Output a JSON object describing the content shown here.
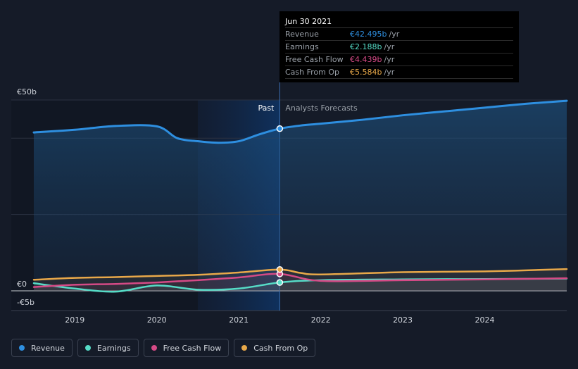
{
  "chart_data": {
    "type": "line",
    "currency_prefix": "€",
    "y_ticks": [
      {
        "v": 50,
        "label": "€50b"
      },
      {
        "v": 0,
        "label": "€0"
      },
      {
        "v": -5,
        "label": "-€5b"
      }
    ],
    "ylim": [
      -5,
      50
    ],
    "xlim": [
      2018.5,
      2025.0
    ],
    "x_ticks": [
      2019,
      2020,
      2021,
      2022,
      2023,
      2024
    ],
    "past_label": "Past",
    "forecast_label": "Analysts Forecasts",
    "divider_x": 2021.5,
    "highlight_start_x": 2020.5,
    "series": [
      {
        "name": "Revenue",
        "color": "#2e8fe0",
        "fill": true,
        "points": [
          [
            2018.5,
            41.5
          ],
          [
            2019.0,
            42.2
          ],
          [
            2019.5,
            43.2
          ],
          [
            2020.0,
            43.1
          ],
          [
            2020.25,
            40.0
          ],
          [
            2020.5,
            39.2
          ],
          [
            2020.75,
            38.8
          ],
          [
            2021.0,
            39.2
          ],
          [
            2021.25,
            41.0
          ],
          [
            2021.5,
            42.495
          ],
          [
            2021.75,
            43.3
          ],
          [
            2022.0,
            43.8
          ],
          [
            2022.5,
            44.8
          ],
          [
            2023.0,
            46.0
          ],
          [
            2023.5,
            47.0
          ],
          [
            2024.0,
            48.0
          ],
          [
            2024.5,
            49.0
          ],
          [
            2025.0,
            49.8
          ]
        ]
      },
      {
        "name": "Earnings",
        "color": "#56dcc7",
        "fill": false,
        "points": [
          [
            2018.5,
            2.0
          ],
          [
            2019.0,
            0.6
          ],
          [
            2019.5,
            -0.2
          ],
          [
            2020.0,
            1.4
          ],
          [
            2020.5,
            0.3
          ],
          [
            2021.0,
            0.6
          ],
          [
            2021.5,
            2.188
          ],
          [
            2022.0,
            2.8
          ],
          [
            2023.0,
            3.0
          ],
          [
            2024.0,
            3.1
          ],
          [
            2025.0,
            3.2
          ]
        ]
      },
      {
        "name": "Free Cash Flow",
        "color": "#d54a86",
        "fill": false,
        "points": [
          [
            2018.5,
            1.0
          ],
          [
            2019.0,
            1.6
          ],
          [
            2019.5,
            1.8
          ],
          [
            2020.0,
            2.2
          ],
          [
            2020.5,
            2.8
          ],
          [
            2021.0,
            3.5
          ],
          [
            2021.5,
            4.439
          ],
          [
            2022.0,
            2.6
          ],
          [
            2023.0,
            2.8
          ],
          [
            2024.0,
            3.0
          ],
          [
            2025.0,
            3.3
          ]
        ]
      },
      {
        "name": "Cash From Op",
        "color": "#e8a849",
        "fill": false,
        "points": [
          [
            2018.5,
            2.9
          ],
          [
            2019.0,
            3.4
          ],
          [
            2019.5,
            3.6
          ],
          [
            2020.0,
            3.9
          ],
          [
            2020.5,
            4.2
          ],
          [
            2021.0,
            4.8
          ],
          [
            2021.5,
            5.584
          ],
          [
            2021.75,
            4.7
          ],
          [
            2022.0,
            4.3
          ],
          [
            2023.0,
            4.9
          ],
          [
            2024.0,
            5.1
          ],
          [
            2025.0,
            5.7
          ]
        ]
      }
    ]
  },
  "tooltip": {
    "date": "Jun 30 2021",
    "rows": [
      {
        "label": "Revenue",
        "value": "€42.495b",
        "unit": "/yr",
        "color": "#2e8fe0"
      },
      {
        "label": "Earnings",
        "value": "€2.188b",
        "unit": "/yr",
        "color": "#56dcc7"
      },
      {
        "label": "Free Cash Flow",
        "value": "€4.439b",
        "unit": "/yr",
        "color": "#d54a86"
      },
      {
        "label": "Cash From Op",
        "value": "€5.584b",
        "unit": "/yr",
        "color": "#e8a849"
      }
    ]
  },
  "legend": [
    {
      "label": "Revenue",
      "color": "#2e8fe0"
    },
    {
      "label": "Earnings",
      "color": "#56dcc7"
    },
    {
      "label": "Free Cash Flow",
      "color": "#d54a86"
    },
    {
      "label": "Cash From Op",
      "color": "#e8a849"
    }
  ]
}
